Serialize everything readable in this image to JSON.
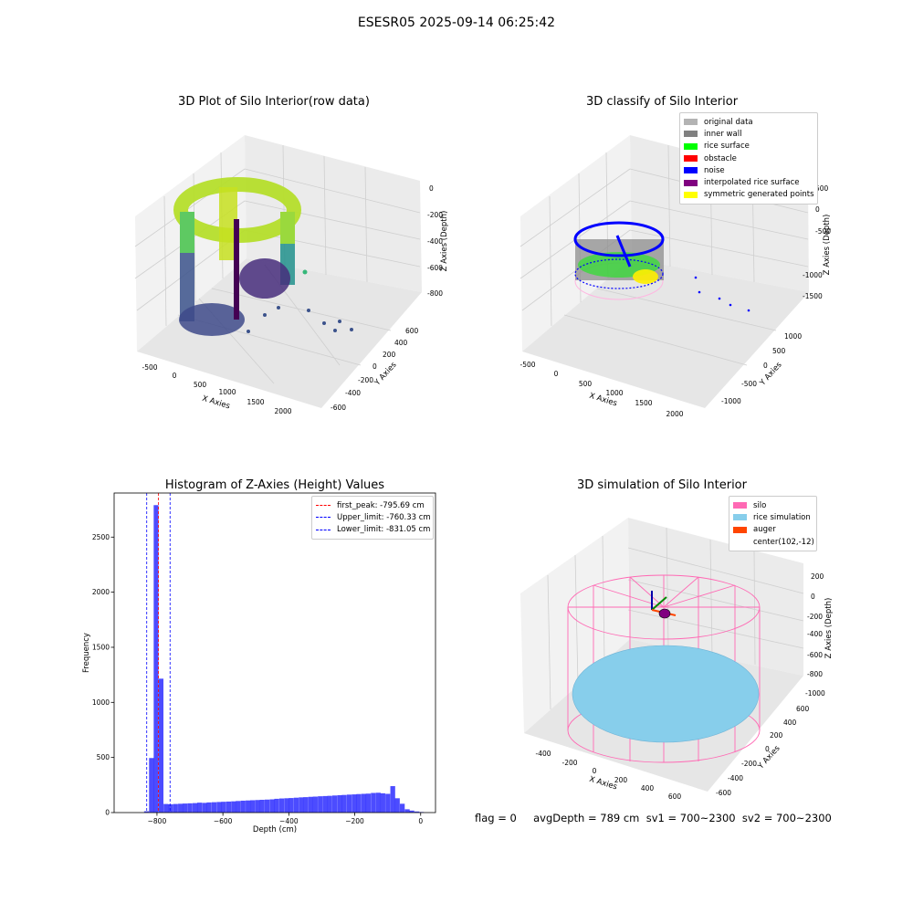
{
  "suptitle": "ESESR05 2025-09-14 06:25:42",
  "panels": {
    "raw": {
      "title": "3D Plot of Silo Interior(row data)",
      "x_label": "X Axies",
      "y_label": "Y Axies",
      "z_label": "Z Axies (Depth)",
      "x_ticks": [
        "-500",
        "0",
        "500",
        "1000",
        "1500",
        "2000"
      ],
      "y_ticks": [
        "-600",
        "-400",
        "-200",
        "0",
        "200",
        "400",
        "600"
      ],
      "z_ticks": [
        "0",
        "-200",
        "-400",
        "-600",
        "-800"
      ]
    },
    "classify": {
      "title": "3D classify of Silo Interior",
      "x_label": "X Axies",
      "y_label": "Y Axies",
      "z_label": "Z Axies (Depth)",
      "x_ticks": [
        "-500",
        "0",
        "500",
        "1000",
        "1500",
        "2000"
      ],
      "y_ticks": [
        "-1000",
        "-500",
        "0",
        "500",
        "1000"
      ],
      "z_ticks": [
        "500",
        "0",
        "-500",
        "-1000",
        "-1500"
      ],
      "legend": [
        {
          "label": "original data",
          "color": "#b3b3b3"
        },
        {
          "label": "inner wall",
          "color": "#808080"
        },
        {
          "label": "rice surface",
          "color": "#00ff00"
        },
        {
          "label": "obstacle",
          "color": "#ff0000"
        },
        {
          "label": "noise",
          "color": "#0000ff"
        },
        {
          "label": "interpolated rice surface",
          "color": "#800080"
        },
        {
          "label": "symmetric generated points",
          "color": "#ffff00"
        }
      ]
    },
    "simulation": {
      "title": "3D simulation of Silo Interior",
      "x_label": "X Axies",
      "y_label": "Y Axies",
      "z_label": "Z Axies (Depth)",
      "x_ticks": [
        "-400",
        "-200",
        "0",
        "200",
        "400",
        "600"
      ],
      "y_ticks": [
        "-600",
        "-400",
        "-200",
        "0",
        "200",
        "400",
        "600"
      ],
      "z_ticks": [
        "200",
        "0",
        "-200",
        "-400",
        "-600",
        "-800",
        "-1000"
      ],
      "legend": [
        {
          "label": "silo",
          "color": "#ff69b4"
        },
        {
          "label": "rice simulation",
          "color": "#87ceeb"
        },
        {
          "label": "auger",
          "color": "#ff4500"
        },
        {
          "label": "center(102,-12)",
          "color": ""
        }
      ]
    }
  },
  "chart_data": {
    "type": "bar",
    "title": "Histogram of Z-Axies (Height) Values",
    "xlabel": "Depth (cm)",
    "ylabel": "Frequency",
    "xlim": [
      -930,
      45
    ],
    "ylim": [
      0,
      2900
    ],
    "x_ticks": [
      -800,
      -600,
      -400,
      -200,
      0
    ],
    "y_ticks": [
      0,
      500,
      1000,
      1500,
      2000,
      2500
    ],
    "bar_color": "#0000ff",
    "bar_width": 14.6,
    "bin_starts": [
      -839,
      -824,
      -810,
      -795,
      -780,
      -766,
      -751,
      -736,
      -722,
      -707,
      -692,
      -678,
      -663,
      -649,
      -634,
      -619,
      -605,
      -590,
      -575,
      -561,
      -546,
      -531,
      -517,
      -502,
      -488,
      -473,
      -458,
      -444,
      -429,
      -414,
      -400,
      -385,
      -370,
      -356,
      -341,
      -327,
      -312,
      -297,
      -283,
      -268,
      -253,
      -239,
      -224,
      -209,
      -195,
      -180,
      -166,
      -151,
      -136,
      -122,
      -107,
      -92,
      -78,
      -63,
      -48,
      -34,
      -19,
      -5
    ],
    "values": [
      12,
      495,
      2790,
      1215,
      78,
      75,
      78,
      80,
      82,
      84,
      86,
      90,
      88,
      92,
      94,
      96,
      98,
      100,
      102,
      105,
      108,
      110,
      112,
      114,
      116,
      118,
      120,
      125,
      128,
      130,
      132,
      135,
      138,
      140,
      143,
      145,
      148,
      150,
      152,
      155,
      158,
      160,
      163,
      165,
      168,
      170,
      172,
      178,
      180,
      175,
      170,
      240,
      130,
      80,
      30,
      18,
      10,
      5
    ],
    "vlines": [
      {
        "label": "first_peak: -795.69 cm",
        "x": -795.69,
        "color": "#ff0000"
      },
      {
        "label": "Upper_limit: -760.33 cm",
        "x": -760.33,
        "color": "#0000ff"
      },
      {
        "label": "Lower_limit: -831.05 cm",
        "x": -831.05,
        "color": "#0000ff"
      }
    ]
  },
  "footer": {
    "text": "flag = 0     avgDepth = 789 cm  sv1 = 700~2300  sv2 = 700~2300"
  }
}
